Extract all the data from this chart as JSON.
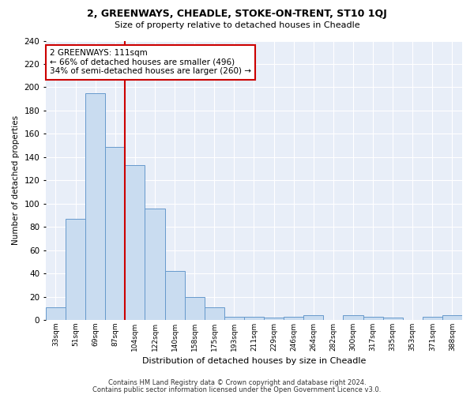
{
  "title": "2, GREENWAYS, CHEADLE, STOKE-ON-TRENT, ST10 1QJ",
  "subtitle": "Size of property relative to detached houses in Cheadle",
  "xlabel": "Distribution of detached houses by size in Cheadle",
  "ylabel": "Number of detached properties",
  "bar_color": "#c9dcf0",
  "bar_edge_color": "#6699cc",
  "background_color": "#e8eef8",
  "grid_color": "#ffffff",
  "categories": [
    "33sqm",
    "51sqm",
    "69sqm",
    "87sqm",
    "104sqm",
    "122sqm",
    "140sqm",
    "158sqm",
    "175sqm",
    "193sqm",
    "211sqm",
    "229sqm",
    "246sqm",
    "264sqm",
    "282sqm",
    "300sqm",
    "317sqm",
    "335sqm",
    "353sqm",
    "371sqm",
    "388sqm"
  ],
  "values": [
    11,
    87,
    195,
    149,
    133,
    96,
    42,
    20,
    11,
    3,
    3,
    2,
    3,
    4,
    0,
    4,
    3,
    2,
    0,
    3,
    4
  ],
  "ylim": [
    0,
    240
  ],
  "yticks": [
    0,
    20,
    40,
    60,
    80,
    100,
    120,
    140,
    160,
    180,
    200,
    220,
    240
  ],
  "vline_x_index": 3.5,
  "annotation_text": "2 GREENWAYS: 111sqm\n← 66% of detached houses are smaller (496)\n34% of semi-detached houses are larger (260) →",
  "annotation_box_color": "#ffffff",
  "annotation_border_color": "#cc0000",
  "vline_color": "#cc0000",
  "footer1": "Contains HM Land Registry data © Crown copyright and database right 2024.",
  "footer2": "Contains public sector information licensed under the Open Government Licence v3.0."
}
